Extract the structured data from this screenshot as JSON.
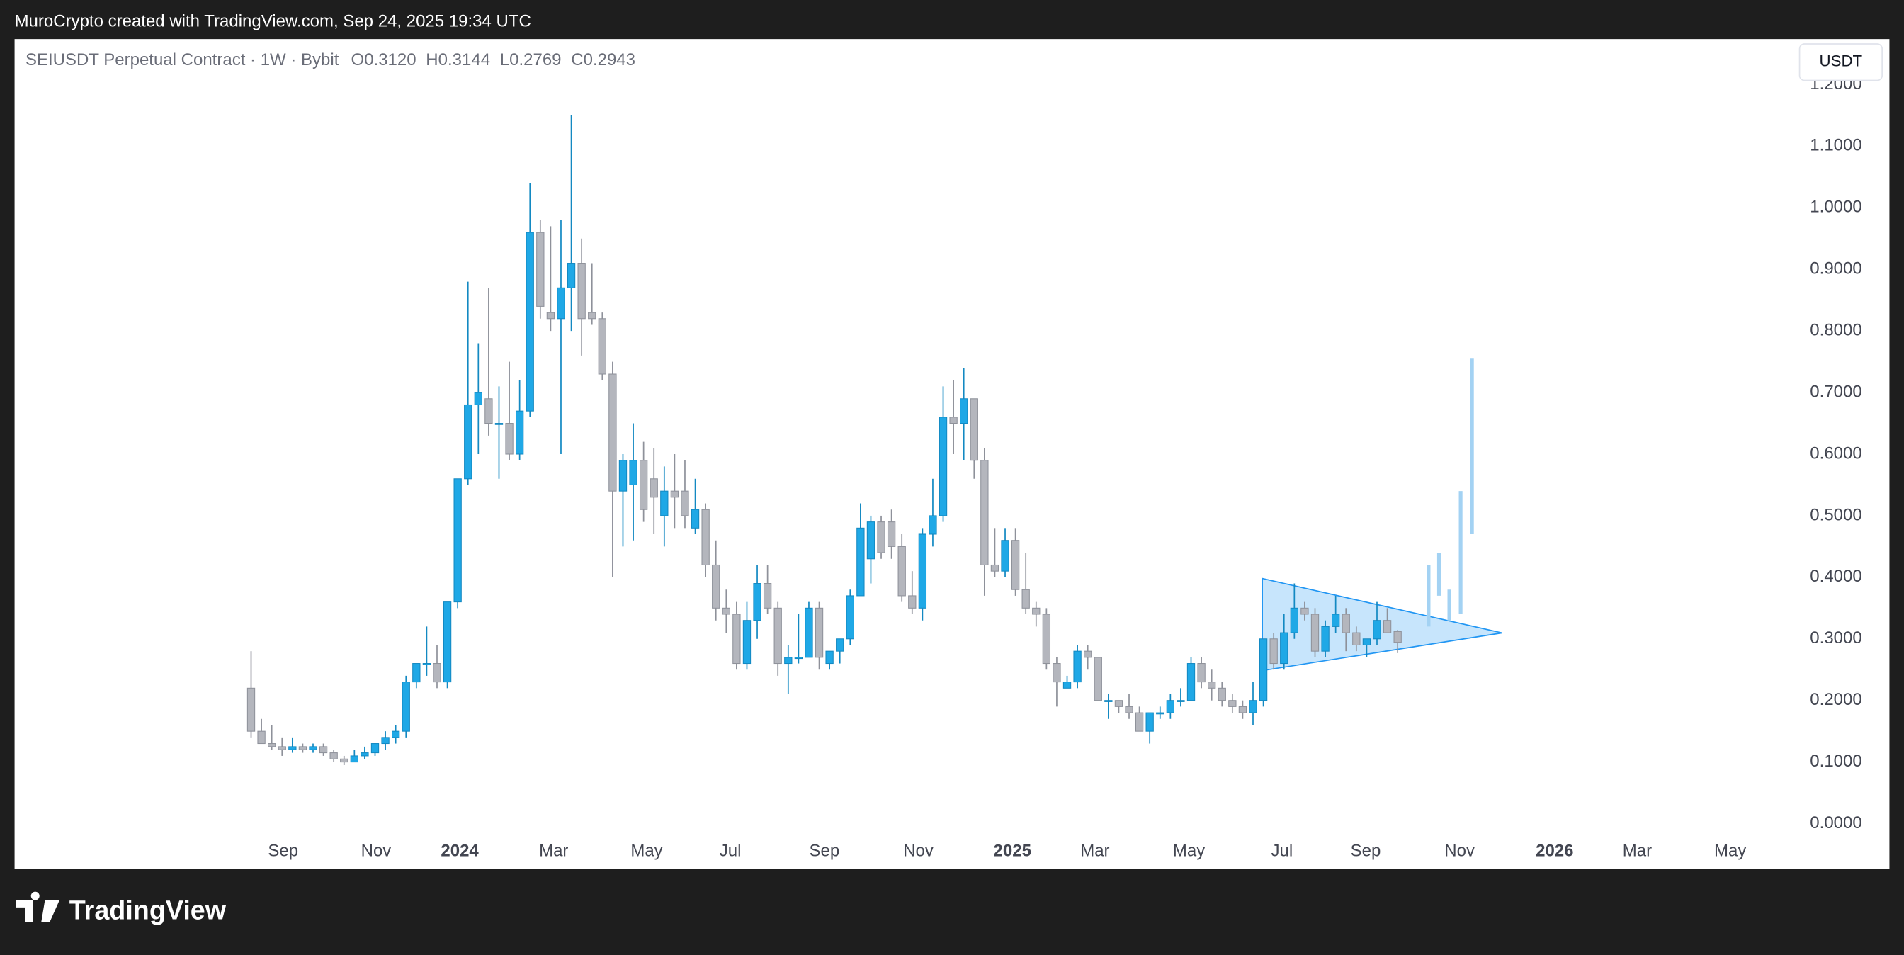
{
  "header": {
    "credit": "MuroCrypto created with TradingView.com, Sep 24, 2025 19:34 UTC"
  },
  "chart_data": {
    "type": "candlestick",
    "title": "SEIUSDT Perpetual Contract · 1W · Bybit",
    "ohlc_legend": [
      {
        "key": "O",
        "value": "0.3120"
      },
      {
        "key": "H",
        "value": "0.3144"
      },
      {
        "key": "L",
        "value": "0.2769"
      },
      {
        "key": "C",
        "value": "0.2943"
      }
    ],
    "currency": "USDT",
    "x": [
      0,
      1,
      2,
      3,
      4,
      5,
      6,
      7,
      8,
      9,
      10,
      11,
      12,
      13,
      14,
      15,
      16,
      17,
      18,
      19,
      20,
      21,
      22,
      23,
      24,
      25,
      26,
      27,
      28,
      29,
      30,
      31,
      32,
      33,
      34,
      35,
      36,
      37,
      38,
      39,
      40,
      41,
      42,
      43,
      44,
      45,
      46,
      47,
      48,
      49,
      50,
      51,
      52,
      53,
      54,
      55,
      56,
      57,
      58,
      59,
      60,
      61,
      62,
      63,
      64,
      65,
      66,
      67,
      68,
      69,
      70,
      71,
      72,
      73,
      74,
      75,
      76,
      77,
      78,
      79,
      80,
      81,
      82,
      83,
      84,
      85,
      86,
      87,
      88,
      89,
      90,
      91,
      92,
      93,
      94,
      95,
      96,
      97,
      98,
      99,
      100,
      101,
      102,
      103,
      104,
      105,
      106,
      107,
      108,
      109,
      110,
      111
    ],
    "open": [
      0.22,
      0.15,
      0.13,
      0.125,
      0.12,
      0.125,
      0.12,
      0.125,
      0.115,
      0.105,
      0.1,
      0.11,
      0.115,
      0.13,
      0.14,
      0.15,
      0.23,
      0.26,
      0.26,
      0.23,
      0.36,
      0.56,
      0.68,
      0.69,
      0.65,
      0.65,
      0.6,
      0.67,
      0.96,
      0.83,
      0.82,
      0.87,
      0.91,
      0.83,
      0.82,
      0.73,
      0.54,
      0.55,
      0.59,
      0.56,
      0.5,
      0.54,
      0.54,
      0.48,
      0.51,
      0.42,
      0.35,
      0.34,
      0.26,
      0.33,
      0.39,
      0.35,
      0.26,
      0.27,
      0.27,
      0.35,
      0.26,
      0.28,
      0.3,
      0.37,
      0.43,
      0.49,
      0.49,
      0.45,
      0.37,
      0.35,
      0.47,
      0.5,
      0.66,
      0.65,
      0.69,
      0.59,
      0.42,
      0.41,
      0.46,
      0.38,
      0.35,
      0.34,
      0.26,
      0.22,
      0.23,
      0.28,
      0.27,
      0.2,
      0.2,
      0.19,
      0.18,
      0.15,
      0.18,
      0.18,
      0.2,
      0.2,
      0.26,
      0.23,
      0.22,
      0.2,
      0.19,
      0.18,
      0.2,
      0.3,
      0.26,
      0.31,
      0.35,
      0.34,
      0.28,
      0.32,
      0.34,
      0.31,
      0.29,
      0.3,
      0.33,
      0.312
    ],
    "high": [
      0.28,
      0.17,
      0.16,
      0.14,
      0.14,
      0.13,
      0.13,
      0.13,
      0.12,
      0.11,
      0.12,
      0.125,
      0.13,
      0.15,
      0.16,
      0.24,
      0.26,
      0.32,
      0.29,
      0.36,
      0.56,
      0.88,
      0.78,
      0.87,
      0.71,
      0.75,
      0.72,
      1.04,
      0.98,
      0.97,
      0.98,
      1.15,
      0.95,
      0.91,
      0.83,
      0.75,
      0.6,
      0.65,
      0.62,
      0.61,
      0.58,
      0.6,
      0.59,
      0.56,
      0.52,
      0.46,
      0.38,
      0.36,
      0.36,
      0.42,
      0.42,
      0.36,
      0.29,
      0.34,
      0.36,
      0.36,
      0.28,
      0.3,
      0.38,
      0.52,
      0.5,
      0.5,
      0.51,
      0.47,
      0.41,
      0.48,
      0.56,
      0.71,
      0.72,
      0.74,
      0.69,
      0.61,
      0.48,
      0.48,
      0.48,
      0.44,
      0.36,
      0.35,
      0.27,
      0.24,
      0.29,
      0.29,
      0.27,
      0.21,
      0.2,
      0.21,
      0.19,
      0.18,
      0.19,
      0.21,
      0.22,
      0.27,
      0.27,
      0.25,
      0.23,
      0.21,
      0.2,
      0.23,
      0.3,
      0.31,
      0.34,
      0.39,
      0.36,
      0.35,
      0.33,
      0.37,
      0.35,
      0.32,
      0.3,
      0.36,
      0.35,
      0.3144
    ],
    "low": [
      0.14,
      0.13,
      0.12,
      0.11,
      0.115,
      0.115,
      0.115,
      0.11,
      0.1,
      0.095,
      0.1,
      0.105,
      0.11,
      0.12,
      0.13,
      0.14,
      0.22,
      0.24,
      0.22,
      0.22,
      0.35,
      0.55,
      0.6,
      0.63,
      0.56,
      0.59,
      0.59,
      0.66,
      0.82,
      0.8,
      0.6,
      0.8,
      0.76,
      0.81,
      0.72,
      0.4,
      0.45,
      0.46,
      0.49,
      0.47,
      0.45,
      0.48,
      0.48,
      0.47,
      0.4,
      0.33,
      0.31,
      0.25,
      0.25,
      0.3,
      0.34,
      0.24,
      0.21,
      0.26,
      0.27,
      0.25,
      0.25,
      0.26,
      0.29,
      0.37,
      0.39,
      0.43,
      0.43,
      0.36,
      0.34,
      0.33,
      0.45,
      0.49,
      0.6,
      0.59,
      0.56,
      0.37,
      0.4,
      0.4,
      0.37,
      0.34,
      0.32,
      0.25,
      0.19,
      0.22,
      0.22,
      0.25,
      0.2,
      0.17,
      0.18,
      0.17,
      0.15,
      0.13,
      0.17,
      0.17,
      0.19,
      0.2,
      0.22,
      0.2,
      0.19,
      0.18,
      0.17,
      0.16,
      0.19,
      0.25,
      0.25,
      0.3,
      0.33,
      0.27,
      0.27,
      0.31,
      0.28,
      0.28,
      0.27,
      0.29,
      0.31,
      0.2769
    ],
    "close": [
      0.15,
      0.13,
      0.125,
      0.12,
      0.125,
      0.12,
      0.125,
      0.115,
      0.105,
      0.1,
      0.11,
      0.115,
      0.13,
      0.14,
      0.15,
      0.23,
      0.26,
      0.26,
      0.23,
      0.36,
      0.56,
      0.68,
      0.7,
      0.65,
      0.65,
      0.6,
      0.67,
      0.96,
      0.84,
      0.82,
      0.87,
      0.91,
      0.82,
      0.82,
      0.73,
      0.54,
      0.59,
      0.59,
      0.51,
      0.53,
      0.54,
      0.53,
      0.5,
      0.51,
      0.42,
      0.35,
      0.34,
      0.26,
      0.33,
      0.39,
      0.35,
      0.26,
      0.27,
      0.27,
      0.35,
      0.27,
      0.28,
      0.3,
      0.37,
      0.48,
      0.49,
      0.44,
      0.45,
      0.37,
      0.35,
      0.47,
      0.5,
      0.66,
      0.65,
      0.69,
      0.59,
      0.42,
      0.41,
      0.46,
      0.38,
      0.35,
      0.34,
      0.26,
      0.23,
      0.23,
      0.28,
      0.27,
      0.2,
      0.2,
      0.19,
      0.18,
      0.15,
      0.18,
      0.18,
      0.2,
      0.2,
      0.26,
      0.23,
      0.22,
      0.2,
      0.19,
      0.18,
      0.2,
      0.3,
      0.26,
      0.31,
      0.35,
      0.34,
      0.28,
      0.32,
      0.34,
      0.31,
      0.29,
      0.3,
      0.33,
      0.31,
      0.2943
    ],
    "up_color": "#1fa8e6",
    "down_color": "#b4b6bd",
    "xlim": [
      -22.9,
      148.5
    ],
    "xticks": [
      {
        "value": 3.1,
        "label": "Sep"
      },
      {
        "value": 12.1,
        "label": "Nov"
      },
      {
        "value": 20.2,
        "label": "2024"
      },
      {
        "value": 29.3,
        "label": "Mar"
      },
      {
        "value": 38.3,
        "label": "May"
      },
      {
        "value": 46.4,
        "label": "Jul"
      },
      {
        "value": 55.5,
        "label": "Sep"
      },
      {
        "value": 64.6,
        "label": "Nov"
      },
      {
        "value": 73.7,
        "label": "2025"
      },
      {
        "value": 81.7,
        "label": "Mar"
      },
      {
        "value": 90.8,
        "label": "May"
      },
      {
        "value": 99.8,
        "label": "Jul"
      },
      {
        "value": 107.9,
        "label": "Sep"
      },
      {
        "value": 117.0,
        "label": "Nov"
      },
      {
        "value": 126.2,
        "label": "2026"
      },
      {
        "value": 134.2,
        "label": "Mar"
      },
      {
        "value": 143.2,
        "label": "May"
      }
    ],
    "ylim": [
      -0.073,
      1.274
    ],
    "yticks": [
      {
        "value": 0,
        "label": "0.0000"
      },
      {
        "value": 0.1,
        "label": "0.1000"
      },
      {
        "value": 0.2,
        "label": "0.2000"
      },
      {
        "value": 0.3,
        "label": "0.3000"
      },
      {
        "value": 0.4,
        "label": "0.4000"
      },
      {
        "value": 0.5,
        "label": "0.5000"
      },
      {
        "value": 0.6,
        "label": "0.6000"
      },
      {
        "value": 0.7,
        "label": "0.7000"
      },
      {
        "value": 0.8,
        "label": "0.8000"
      },
      {
        "value": 0.9,
        "label": "0.9000"
      },
      {
        "value": 1,
        "label": "1.0000"
      },
      {
        "value": 1.1,
        "label": "1.1000"
      },
      {
        "value": 1.2,
        "label": "1.2000"
      }
    ],
    "grid": false,
    "triangle": {
      "x": [
        97.9,
        97.9,
        121.1
      ],
      "y": [
        0.398,
        0.2485,
        0.3097
      ],
      "color": "#2196f3"
    },
    "projection": {
      "x": [
        114.0,
        115.0,
        116.0,
        117.1,
        118.2
      ],
      "high": [
        0.42,
        0.44,
        0.38,
        0.54,
        0.755
      ],
      "low": [
        0.32,
        0.37,
        0.33,
        0.34,
        0.47
      ],
      "color": "#a3d2f3"
    }
  },
  "footer": {
    "brand": "TradingView"
  }
}
